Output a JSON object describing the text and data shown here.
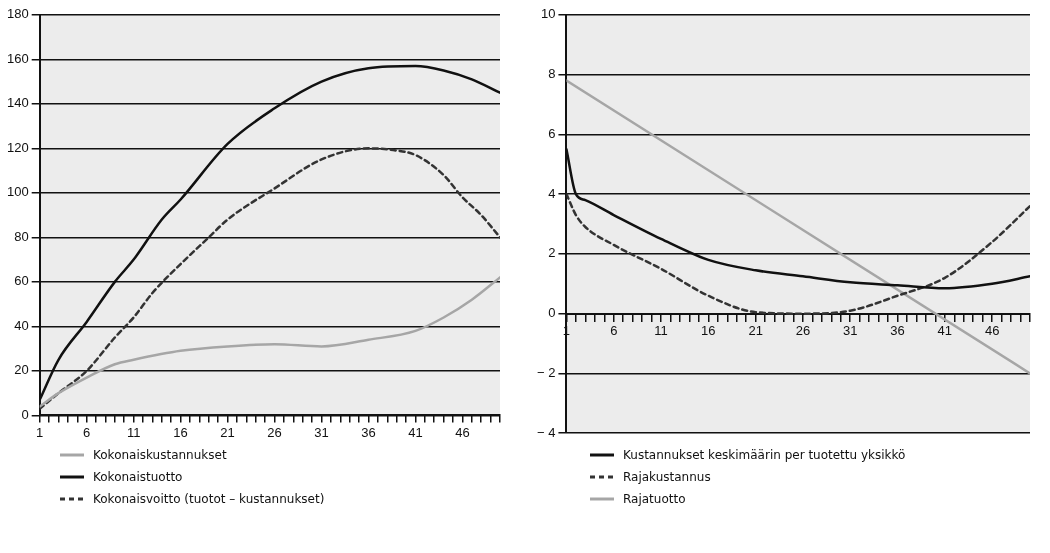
{
  "chart_data": [
    {
      "type": "line",
      "xlim": [
        1,
        50
      ],
      "ylim": [
        0,
        180
      ],
      "yticks": [
        0,
        20,
        40,
        60,
        80,
        100,
        120,
        140,
        160,
        180
      ],
      "xticks": [
        1,
        {
          "value": 2,
          "label": null
        },
        {
          "value": 3,
          "label": null
        },
        {
          "value": 4,
          "label": null
        },
        {
          "value": 5,
          "label": null
        },
        6,
        {
          "value": 7,
          "label": null
        },
        {
          "value": 8,
          "label": null
        },
        {
          "value": 9,
          "label": null
        },
        {
          "value": 10,
          "label": null
        },
        11,
        {
          "value": 12,
          "label": null
        },
        {
          "value": 13,
          "label": null
        },
        {
          "value": 14,
          "label": null
        },
        {
          "value": 15,
          "label": null
        },
        16,
        {
          "value": 17,
          "label": null
        },
        {
          "value": 18,
          "label": null
        },
        {
          "value": 19,
          "label": null
        },
        {
          "value": 20,
          "label": null
        },
        21,
        {
          "value": 22,
          "label": null
        },
        {
          "value": 23,
          "label": null
        },
        {
          "value": 24,
          "label": null
        },
        {
          "value": 25,
          "label": null
        },
        26,
        {
          "value": 27,
          "label": null
        },
        {
          "value": 28,
          "label": null
        },
        {
          "value": 29,
          "label": null
        },
        {
          "value": 30,
          "label": null
        },
        31,
        {
          "value": 32,
          "label": null
        },
        {
          "value": 33,
          "label": null
        },
        {
          "value": 34,
          "label": null
        },
        {
          "value": 35,
          "label": null
        },
        36,
        {
          "value": 37,
          "label": null
        },
        {
          "value": 38,
          "label": null
        },
        {
          "value": 39,
          "label": null
        },
        {
          "value": 40,
          "label": null
        },
        41,
        {
          "value": 42,
          "label": null
        },
        {
          "value": 43,
          "label": null
        },
        {
          "value": 44,
          "label": null
        },
        {
          "value": 45,
          "label": null
        },
        46,
        {
          "value": 47,
          "label": null
        },
        {
          "value": 48,
          "label": null
        },
        {
          "value": 49,
          "label": null
        },
        {
          "value": 50,
          "label": null
        }
      ],
      "grid": "y",
      "legend": "bottom",
      "marker": "none",
      "series": [
        {
          "name": "Kokonaiskustannukset",
          "color": "#a6a6a6",
          "line_style": "solid",
          "x": [
            1,
            3,
            6,
            9,
            11,
            16,
            21,
            26,
            31,
            36,
            41,
            44,
            47,
            50
          ],
          "values": [
            4,
            10,
            17,
            23,
            25,
            29,
            31,
            32,
            31,
            34,
            38,
            44,
            52,
            62
          ]
        },
        {
          "name": "Kokonaistuotto",
          "color": "#111111",
          "line_style": "solid",
          "x": [
            1,
            3,
            6,
            9,
            11,
            14,
            16,
            21,
            26,
            31,
            36,
            41,
            44,
            47,
            50
          ],
          "values": [
            7,
            25,
            42,
            60,
            70,
            88,
            97,
            122,
            138,
            150,
            156,
            157,
            155,
            151,
            145
          ]
        },
        {
          "name": "Kokonaisvoitto (tuotot – kustannukset)",
          "color": "#333333",
          "line_style": "dashed",
          "x": [
            1,
            3,
            6,
            9,
            11,
            13,
            16,
            19,
            21,
            26,
            31,
            36,
            39,
            41,
            44,
            46,
            48,
            50
          ],
          "values": [
            3,
            10,
            20,
            35,
            44,
            55,
            68,
            80,
            88,
            102,
            115,
            120,
            119,
            117,
            108,
            98,
            90,
            80
          ]
        }
      ]
    },
    {
      "type": "line",
      "xlim": [
        1,
        50
      ],
      "ylim": [
        -4,
        10
      ],
      "yticks": [
        -4,
        -2,
        0,
        2,
        4,
        6,
        8,
        10
      ],
      "xticks": [
        1,
        {
          "value": 2,
          "label": null
        },
        {
          "value": 3,
          "label": null
        },
        {
          "value": 4,
          "label": null
        },
        {
          "value": 5,
          "label": null
        },
        6,
        {
          "value": 7,
          "label": null
        },
        {
          "value": 8,
          "label": null
        },
        {
          "value": 9,
          "label": null
        },
        {
          "value": 10,
          "label": null
        },
        11,
        {
          "value": 12,
          "label": null
        },
        {
          "value": 13,
          "label": null
        },
        {
          "value": 14,
          "label": null
        },
        {
          "value": 15,
          "label": null
        },
        16,
        {
          "value": 17,
          "label": null
        },
        {
          "value": 18,
          "label": null
        },
        {
          "value": 19,
          "label": null
        },
        {
          "value": 20,
          "label": null
        },
        21,
        {
          "value": 22,
          "label": null
        },
        {
          "value": 23,
          "label": null
        },
        {
          "value": 24,
          "label": null
        },
        {
          "value": 25,
          "label": null
        },
        26,
        {
          "value": 27,
          "label": null
        },
        {
          "value": 28,
          "label": null
        },
        {
          "value": 29,
          "label": null
        },
        {
          "value": 30,
          "label": null
        },
        31,
        {
          "value": 32,
          "label": null
        },
        {
          "value": 33,
          "label": null
        },
        {
          "value": 34,
          "label": null
        },
        {
          "value": 35,
          "label": null
        },
        36,
        {
          "value": 37,
          "label": null
        },
        {
          "value": 38,
          "label": null
        },
        {
          "value": 39,
          "label": null
        },
        {
          "value": 40,
          "label": null
        },
        41,
        {
          "value": 42,
          "label": null
        },
        {
          "value": 43,
          "label": null
        },
        {
          "value": 44,
          "label": null
        },
        {
          "value": 45,
          "label": null
        },
        46,
        {
          "value": 47,
          "label": null
        },
        {
          "value": 48,
          "label": null
        },
        {
          "value": 49,
          "label": null
        },
        {
          "value": 50,
          "label": null
        }
      ],
      "grid": "y",
      "legend": "bottom",
      "marker": "none",
      "series": [
        {
          "name": "Kustannukset keskimäärin per tuotettu yksikkö",
          "color": "#111111",
          "line_style": "solid",
          "x": [
            1,
            2,
            3,
            6,
            11,
            16,
            21,
            26,
            31,
            36,
            41,
            46,
            50
          ],
          "values": [
            5.5,
            4,
            3.8,
            3.3,
            2.5,
            1.8,
            1.45,
            1.25,
            1.05,
            0.95,
            0.85,
            1.0,
            1.25
          ]
        },
        {
          "name": "Rajakustannus",
          "color": "#333333",
          "line_style": "dashed",
          "x": [
            1,
            2,
            3,
            6,
            11,
            16,
            21,
            26,
            31,
            36,
            41,
            46,
            50
          ],
          "values": [
            4,
            3.3,
            2.9,
            2.3,
            1.5,
            0.6,
            0.05,
            0,
            0.1,
            0.6,
            1.2,
            2.4,
            3.6
          ]
        },
        {
          "name": "Rajatuotto",
          "color": "#a6a6a6",
          "line_style": "solid",
          "x": [
            1,
            50
          ],
          "values": [
            7.8,
            -2
          ]
        }
      ]
    }
  ]
}
